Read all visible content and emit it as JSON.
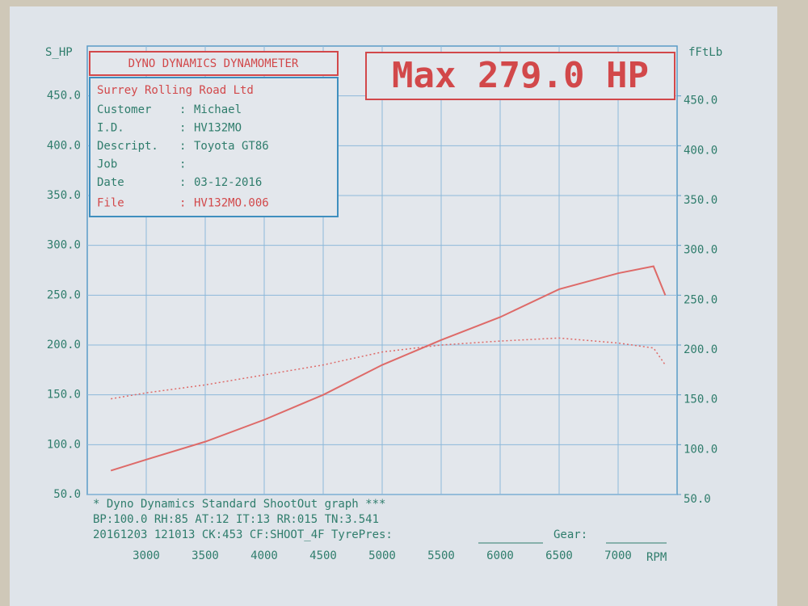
{
  "chart_data": {
    "type": "line",
    "header": "DYNO DYNAMICS DYNAMOMETER",
    "max_label": "Max 279.0 HP",
    "info": {
      "company": "Surrey Rolling Road Ltd",
      "rows": [
        {
          "label": "Customer",
          "value": "Michael"
        },
        {
          "label": "I.D.",
          "value": "HV132MO"
        },
        {
          "label": "Descript.",
          "value": "Toyota GT86"
        },
        {
          "label": "Job"
        },
        {
          "label": "Date",
          "value": "03-12-2016"
        },
        {
          "label": "File",
          "value": "HV132MO.006"
        }
      ]
    },
    "footer": {
      "line1": "* Dyno Dynamics Standard ShootOut graph ***",
      "line2": "BP:100.0 RH:85 AT:12 IT:13 RR:015 TN:3.541",
      "line3": "20161203 121013 CK:453 CF:SHOOT_4F TyrePres:",
      "gear": "Gear:"
    },
    "y_label": "S_HP",
    "y2_label": "fFtLb",
    "x_label": "RPM",
    "x": [
      2700,
      3000,
      3500,
      4000,
      4500,
      5000,
      5500,
      6000,
      6500,
      7000,
      7300,
      7400
    ],
    "series": [
      {
        "color": "#de6a68",
        "style": "solid",
        "values": [
          74,
          85,
          103,
          125,
          150,
          180,
          205,
          228,
          256,
          272,
          279,
          250
        ]
      },
      {
        "color": "#de6a68",
        "style": "dotted",
        "axis": "y2",
        "values": [
          146,
          152,
          160,
          170,
          180,
          193,
          200,
          204,
          207,
          202,
          197,
          180
        ]
      }
    ],
    "xlim": [
      2500,
      7500
    ],
    "xticks": [
      3000,
      3500,
      4000,
      4500,
      5000,
      5500,
      6000,
      6500,
      7000
    ],
    "ylim": [
      50,
      500
    ],
    "yticks": [
      {
        "value": 50,
        "label": "50.0"
      },
      {
        "value": 100,
        "label": "100.0"
      },
      {
        "value": 150,
        "label": "150.0"
      },
      {
        "value": 200,
        "label": "200.0"
      },
      {
        "value": 250,
        "label": "250.0"
      },
      {
        "value": 300,
        "label": "300.0"
      },
      {
        "value": 350,
        "label": "350.0"
      },
      {
        "value": 400,
        "label": "400.0"
      },
      {
        "value": 450,
        "label": "450.0"
      }
    ],
    "y2lim": [
      50,
      500
    ],
    "y2ticks": [
      {
        "value": 50,
        "label": "50.0"
      },
      {
        "value": 100,
        "label": "100.0"
      },
      {
        "value": 150,
        "label": "150.0"
      },
      {
        "value": 200,
        "label": "200.0"
      },
      {
        "value": 250,
        "label": "250.0"
      },
      {
        "value": 300,
        "label": "300.0"
      },
      {
        "value": 350,
        "label": "350.0"
      },
      {
        "value": 400,
        "label": "400.0"
      },
      {
        "value": 450,
        "label": "450.0"
      }
    ],
    "grid": true
  }
}
